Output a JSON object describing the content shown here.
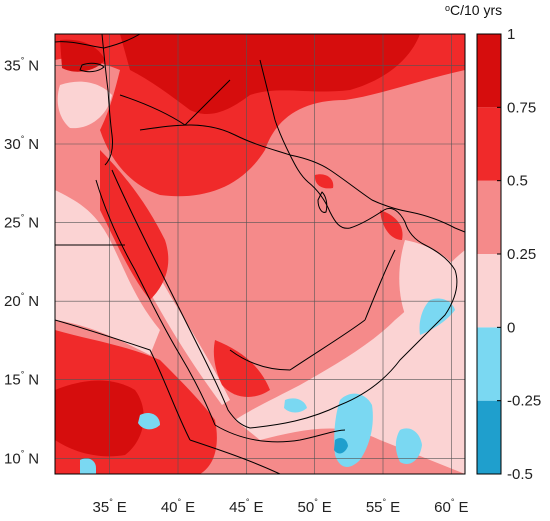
{
  "map": {
    "lon_range": [
      31,
      61
    ],
    "lat_range": [
      9,
      37
    ],
    "lon_ticks": [
      {
        "value": 35,
        "deg": "°",
        "hem": "E"
      },
      {
        "value": 40,
        "deg": "°",
        "hem": "E"
      },
      {
        "value": 45,
        "deg": "°",
        "hem": "E"
      },
      {
        "value": 50,
        "deg": "°",
        "hem": "E"
      },
      {
        "value": 55,
        "deg": "°",
        "hem": "E"
      },
      {
        "value": 60,
        "deg": "°",
        "hem": "E"
      }
    ],
    "lat_ticks": [
      {
        "value": 35,
        "deg": "°",
        "hem": "N"
      },
      {
        "value": 30,
        "deg": "°",
        "hem": "N"
      },
      {
        "value": 25,
        "deg": "°",
        "hem": "N"
      },
      {
        "value": 20,
        "deg": "°",
        "hem": "N"
      },
      {
        "value": 15,
        "deg": "°",
        "hem": "N"
      },
      {
        "value": 10,
        "deg": "°",
        "hem": "N"
      }
    ],
    "grid": true
  },
  "colorbar": {
    "unit_sup": "o",
    "unit_text": "C/10 yrs",
    "levels": [
      {
        "from": -0.5,
        "to": -0.25,
        "color": "#1f9fcd"
      },
      {
        "from": -0.25,
        "to": 0,
        "color": "#7ad8f2"
      },
      {
        "from": 0,
        "to": 0.25,
        "color": "#fbd3d3"
      },
      {
        "from": 0.25,
        "to": 0.5,
        "color": "#f58a8a"
      },
      {
        "from": 0.5,
        "to": 0.75,
        "color": "#f02a2a"
      },
      {
        "from": 0.75,
        "to": 1,
        "color": "#d60d0d"
      }
    ],
    "tick_labels": [
      "1",
      "0.75",
      "0.5",
      "0.25",
      "0",
      "-0.25",
      "-0.5"
    ]
  },
  "colors": {
    "ocean_light": "#fbd3d3",
    "land_mid": "#f58a8a",
    "warm": "#f02a2a",
    "hot": "#d60d0d",
    "cool": "#7ad8f2",
    "cold": "#1f9fcd",
    "coast": "#000000",
    "grid": "#555555"
  }
}
